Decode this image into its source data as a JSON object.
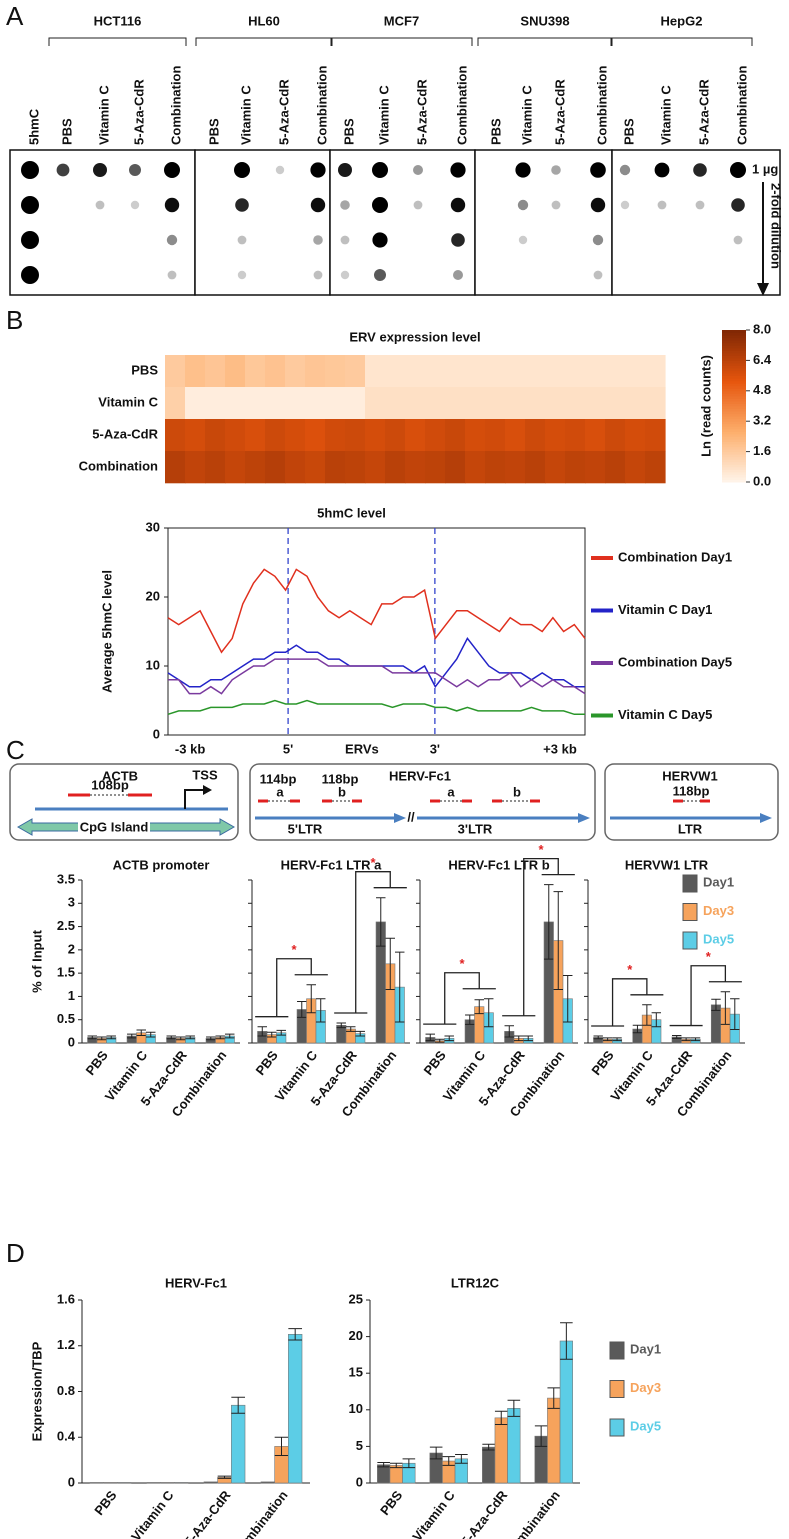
{
  "panels": [
    "A",
    "B",
    "C",
    "D"
  ],
  "panel_a": {
    "reference": "5hmC",
    "amount": "1 µg",
    "dilution": "2-fold dilution",
    "groups": [
      {
        "name": "HCT116",
        "lanes": [
          "PBS",
          "Vitamin C",
          "5-Aza-CdR",
          "Combination"
        ]
      },
      {
        "name": "HL60",
        "lanes": [
          "PBS",
          "Vitamin C",
          "5-Aza-CdR",
          "Combination"
        ]
      },
      {
        "name": "MCF7",
        "lanes": [
          "PBS",
          "Vitamin C",
          "5-Aza-CdR",
          "Combination"
        ]
      },
      {
        "name": "SNU398",
        "lanes": [
          "PBS",
          "Vitamin C",
          "5-Aza-CdR",
          "Combination"
        ]
      },
      {
        "name": "HepG2",
        "lanes": [
          "PBS",
          "Vitamin C",
          "5-Aza-CdR",
          "Combination"
        ]
      }
    ]
  },
  "diagram": {
    "boxes": [
      {
        "title": "ACTB",
        "amplicon": "108bp",
        "tss": "TSS",
        "region": "CpG Island"
      },
      {
        "title": "HERV-Fc1",
        "amplicons": [
          "114bp",
          "118bp"
        ],
        "sites": [
          "a",
          "b",
          "a",
          "b"
        ],
        "break": "//",
        "regions": [
          "5'LTR",
          "3'LTR"
        ]
      },
      {
        "title": "HERVW1",
        "amplicon": "118bp",
        "region": "LTR"
      }
    ]
  },
  "chart_data": [
    {
      "type": "heatmap",
      "title": "ERV expression level",
      "rows": [
        "PBS",
        "Vitamin C",
        "5-Aza-CdR",
        "Combination"
      ],
      "values": [
        [
          1.6,
          2.0,
          1.8,
          2.1,
          1.7,
          1.9,
          1.6,
          1.8,
          1.7,
          1.6,
          0.6,
          0.6,
          0.6,
          0.6,
          0.6,
          0.6,
          0.6,
          0.6,
          0.6,
          0.6,
          0.6,
          0.6,
          0.6,
          0.6,
          0.6
        ],
        [
          1.4,
          0.3,
          0.3,
          0.3,
          0.3,
          0.3,
          0.3,
          0.3,
          0.3,
          0.3,
          0.8,
          0.8,
          0.8,
          0.8,
          0.8,
          0.8,
          0.8,
          0.8,
          0.8,
          0.8,
          0.8,
          0.8,
          0.8,
          0.8,
          0.8
        ],
        [
          6.0,
          5.8,
          6.1,
          5.9,
          5.7,
          6.0,
          5.8,
          5.6,
          5.9,
          6.0,
          5.8,
          6.0,
          5.7,
          5.9,
          6.1,
          5.8,
          5.9,
          5.7,
          6.0,
          5.8,
          5.9,
          5.7,
          6.0,
          5.8,
          5.9
        ],
        [
          6.6,
          6.3,
          6.5,
          6.2,
          6.4,
          6.6,
          6.3,
          6.1,
          6.5,
          6.4,
          6.2,
          6.5,
          6.3,
          6.4,
          6.6,
          6.2,
          6.4,
          6.3,
          6.5,
          6.2,
          6.4,
          6.3,
          6.5,
          6.2,
          6.4
        ]
      ],
      "colorbar": {
        "label": "Ln (read counts)",
        "lim": [
          0,
          8
        ],
        "ticks": [
          {
            "value": 8,
            "label": "8.0"
          },
          {
            "value": 6.4,
            "label": "6.4"
          },
          {
            "value": 4.8,
            "label": "4.8"
          },
          {
            "value": 3.2,
            "label": "3.2"
          },
          {
            "value": 1.6,
            "label": "1.6"
          },
          {
            "value": 0,
            "label": "0.0"
          }
        ]
      }
    },
    {
      "type": "line",
      "title": "5hmC level",
      "ylabel": "Average 5hmC level",
      "x_labels": [
        "-3 kb",
        "5'",
        "ERVs",
        "3'",
        "+3 kb"
      ],
      "ylim": [
        0,
        30
      ],
      "yticks": [
        0,
        10,
        20,
        30
      ],
      "legend": "right",
      "series": [
        {
          "name": "Combination Day1",
          "color": "#e0301e",
          "values": [
            17,
            16,
            17,
            18,
            15,
            12,
            14,
            19,
            22,
            24,
            23,
            21,
            24,
            23,
            20,
            18,
            17,
            18,
            17,
            16,
            19,
            19,
            20,
            20,
            21,
            14,
            16,
            18,
            18,
            17,
            16,
            15,
            17,
            16,
            16,
            15,
            17,
            15,
            16,
            14
          ]
        },
        {
          "name": "Vitamin C Day1",
          "color": "#2323c8",
          "values": [
            9,
            8,
            7,
            7,
            8,
            8,
            9,
            10,
            11,
            11,
            12,
            12,
            13,
            12,
            12,
            11,
            11,
            10,
            10,
            10,
            10,
            10,
            10,
            9,
            10,
            7,
            9,
            11,
            14,
            12,
            10,
            9,
            9,
            9,
            8,
            9,
            8,
            8,
            7,
            7
          ]
        },
        {
          "name": "Combination Day5",
          "color": "#7a3a9e",
          "values": [
            8,
            8,
            6,
            6,
            7,
            6,
            8,
            9,
            10,
            10,
            11,
            11,
            11,
            11,
            11,
            10,
            10,
            10,
            10,
            10,
            10,
            9,
            9,
            9,
            9,
            9,
            8,
            7,
            8,
            7,
            8,
            8,
            9,
            7,
            8,
            7,
            8,
            7,
            7,
            6
          ]
        },
        {
          "name": "Vitamin C Day5",
          "color": "#2a962a",
          "values": [
            3,
            3.5,
            3.5,
            3.5,
            4,
            4,
            4,
            4.5,
            4.5,
            4.5,
            5,
            4.5,
            4.5,
            5,
            4.5,
            4.5,
            4.5,
            4.5,
            4.5,
            4.5,
            4.5,
            4,
            4.5,
            4.5,
            4.5,
            4,
            4,
            3.5,
            4,
            3.5,
            3.5,
            3.5,
            3.5,
            3.5,
            4,
            3.5,
            3.5,
            3.5,
            3,
            3
          ]
        }
      ]
    },
    {
      "type": "bar",
      "title": "ACTB promoter",
      "ylabel": "% of Input",
      "categories": [
        "PBS",
        "Vitamin C",
        "5-Aza-CdR",
        "Combination"
      ],
      "ylim": [
        0,
        3.5
      ],
      "yticks": [
        0,
        0.5,
        1,
        1.5,
        2,
        2.5,
        3,
        3.5
      ],
      "series": [
        {
          "name": "Day1",
          "color": "#5a5a5a",
          "values": [
            0.12,
            0.15,
            0.12,
            0.1
          ],
          "errors": [
            0.03,
            0.04,
            0.03,
            0.03
          ]
        },
        {
          "name": "Day3",
          "color": "#f6a35c",
          "values": [
            0.1,
            0.22,
            0.1,
            0.12
          ],
          "errors": [
            0.03,
            0.06,
            0.03,
            0.03
          ]
        },
        {
          "name": "Day5",
          "color": "#5ccde6",
          "values": [
            0.12,
            0.18,
            0.12,
            0.15
          ],
          "errors": [
            0.03,
            0.05,
            0.03,
            0.04
          ]
        }
      ]
    },
    {
      "type": "bar",
      "title": "HERV-Fc1 LTR a",
      "categories": [
        "PBS",
        "Vitamin C",
        "5-Aza-CdR",
        "Combination"
      ],
      "ylim": [
        0,
        3.5
      ],
      "yticks": [
        0,
        0.5,
        1,
        1.5,
        2,
        2.5,
        3,
        3.5
      ],
      "annotations": [
        "*",
        "*"
      ],
      "series": [
        {
          "name": "Day1",
          "color": "#5a5a5a",
          "values": [
            0.25,
            0.72,
            0.38,
            2.6
          ],
          "errors": [
            0.1,
            0.17,
            0.05,
            0.52
          ]
        },
        {
          "name": "Day3",
          "color": "#f6a35c",
          "values": [
            0.18,
            0.95,
            0.3,
            1.7
          ],
          "errors": [
            0.05,
            0.3,
            0.05,
            0.55
          ]
        },
        {
          "name": "Day5",
          "color": "#5ccde6",
          "values": [
            0.22,
            0.7,
            0.2,
            1.2
          ],
          "errors": [
            0.05,
            0.25,
            0.05,
            0.75
          ]
        }
      ]
    },
    {
      "type": "bar",
      "title": "HERV-Fc1 LTR b",
      "categories": [
        "PBS",
        "Vitamin C",
        "5-Aza-CdR",
        "Combination"
      ],
      "ylim": [
        0,
        3.5
      ],
      "yticks": [
        0,
        0.5,
        1,
        1.5,
        2,
        2.5,
        3,
        3.5
      ],
      "annotations": [
        "*",
        "*"
      ],
      "series": [
        {
          "name": "Day1",
          "color": "#5a5a5a",
          "values": [
            0.12,
            0.5,
            0.25,
            2.6
          ],
          "errors": [
            0.07,
            0.1,
            0.12,
            0.8
          ]
        },
        {
          "name": "Day3",
          "color": "#f6a35c",
          "values": [
            0.05,
            0.78,
            0.1,
            2.2
          ],
          "errors": [
            0.03,
            0.15,
            0.05,
            1.05
          ]
        },
        {
          "name": "Day5",
          "color": "#5ccde6",
          "values": [
            0.1,
            0.65,
            0.1,
            0.95
          ],
          "errors": [
            0.05,
            0.3,
            0.05,
            0.5
          ]
        }
      ]
    },
    {
      "type": "bar",
      "title": "HERVW1 LTR",
      "categories": [
        "PBS",
        "Vitamin C",
        "5-Aza-CdR",
        "Combination"
      ],
      "ylim": [
        0,
        3.5
      ],
      "yticks": [
        0,
        0.5,
        1,
        1.5,
        2,
        2.5,
        3,
        3.5
      ],
      "annotations": [
        "*",
        "*"
      ],
      "legend": "upper right",
      "series": [
        {
          "name": "Day1",
          "color": "#5a5a5a",
          "values": [
            0.12,
            0.3,
            0.13,
            0.82
          ],
          "errors": [
            0.03,
            0.08,
            0.03,
            0.12
          ]
        },
        {
          "name": "Day3",
          "color": "#f6a35c",
          "values": [
            0.08,
            0.6,
            0.08,
            0.75
          ],
          "errors": [
            0.03,
            0.22,
            0.03,
            0.35
          ]
        },
        {
          "name": "Day5",
          "color": "#5ccde6",
          "values": [
            0.08,
            0.5,
            0.08,
            0.62
          ],
          "errors": [
            0.03,
            0.15,
            0.03,
            0.33
          ]
        }
      ]
    },
    {
      "type": "bar",
      "title": "HERV-Fc1",
      "ylabel": "Expression/TBP",
      "categories": [
        "PBS",
        "Vitamin C",
        "5-Aza-CdR",
        "Combination"
      ],
      "ylim": [
        0,
        1.6
      ],
      "yticks": [
        0,
        0.4,
        0.8,
        1.2,
        1.6
      ],
      "series": [
        {
          "name": "Day1",
          "color": "#5a5a5a",
          "values": [
            0.005,
            0.005,
            0.01,
            0.01
          ],
          "errors": [
            0,
            0,
            0,
            0
          ]
        },
        {
          "name": "Day3",
          "color": "#f6a35c",
          "values": [
            0.005,
            0.005,
            0.05,
            0.32
          ],
          "errors": [
            0,
            0,
            0.01,
            0.08
          ]
        },
        {
          "name": "Day5",
          "color": "#5ccde6",
          "values": [
            0.005,
            0.005,
            0.68,
            1.3
          ],
          "errors": [
            0,
            0,
            0.07,
            0.05
          ]
        }
      ]
    },
    {
      "type": "bar",
      "title": "LTR12C",
      "legend": "right",
      "categories": [
        "PBS",
        "Vitamin C",
        "5-Aza-CdR",
        "Combination"
      ],
      "ylim": [
        0,
        25
      ],
      "yticks": [
        0,
        5,
        10,
        15,
        20,
        25
      ],
      "series": [
        {
          "name": "Day1",
          "color": "#5a5a5a",
          "values": [
            2.5,
            4.1,
            4.9,
            6.4
          ],
          "errors": [
            0.3,
            0.8,
            0.4,
            1.4
          ]
        },
        {
          "name": "Day3",
          "color": "#f6a35c",
          "values": [
            2.4,
            3.0,
            8.9,
            11.6
          ],
          "errors": [
            0.3,
            0.6,
            0.9,
            1.4
          ]
        },
        {
          "name": "Day5",
          "color": "#5ccde6",
          "values": [
            2.7,
            3.3,
            10.2,
            19.4
          ],
          "errors": [
            0.6,
            0.6,
            1.1,
            2.5
          ]
        }
      ]
    }
  ]
}
